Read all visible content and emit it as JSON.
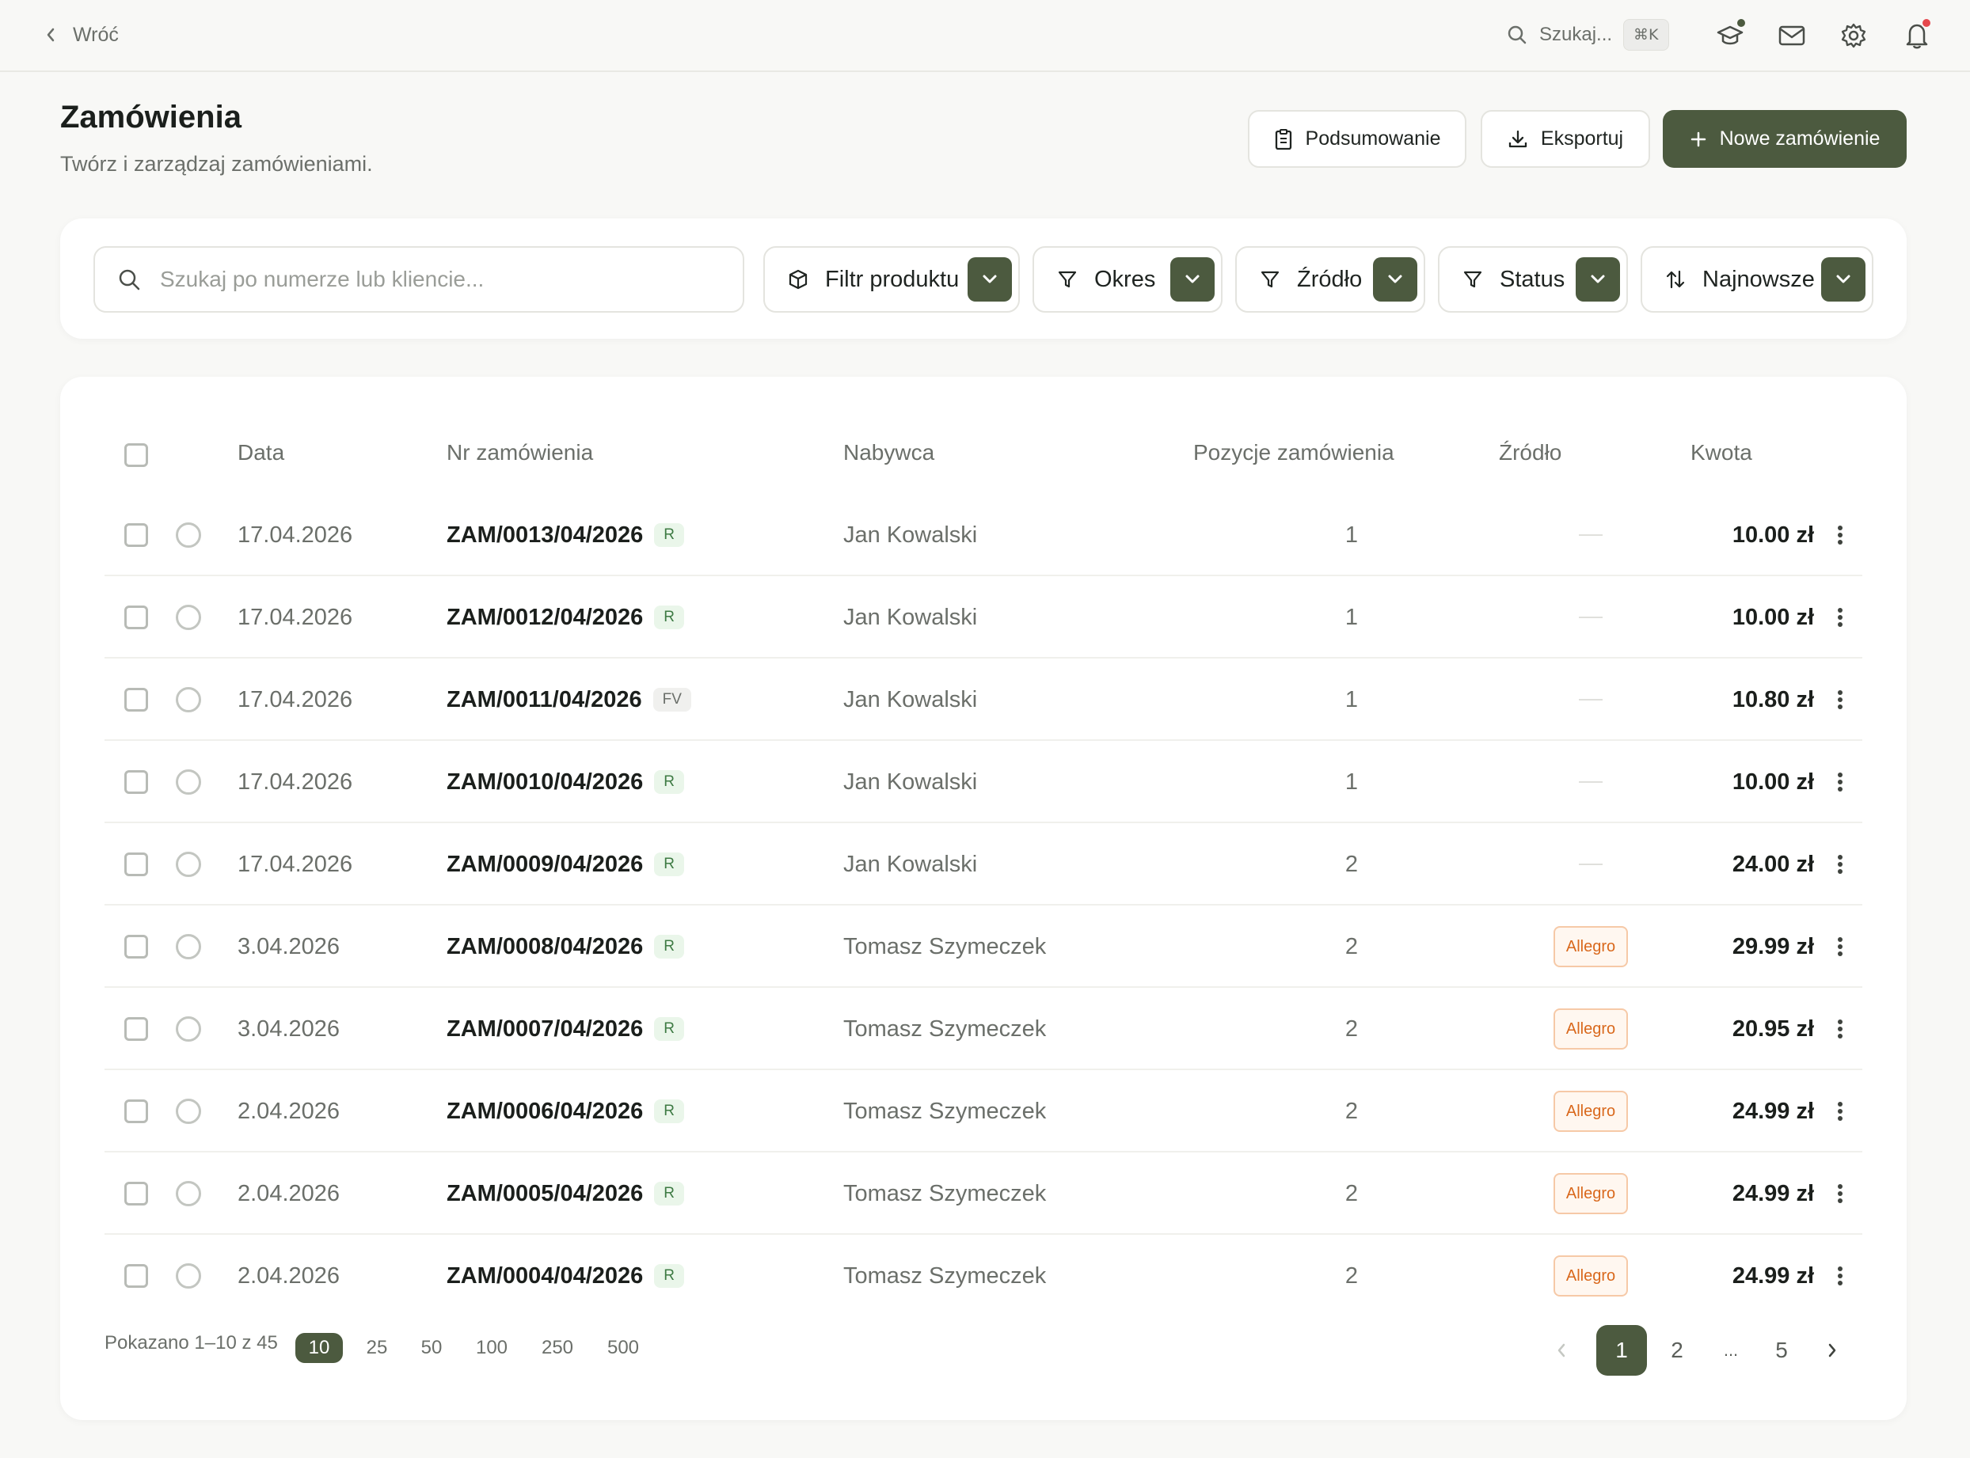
{
  "topbar": {
    "back_label": "Wróć",
    "search_label": "Szukaj...",
    "search_shortcut": "⌘K",
    "icons": [
      "graduation-cap-icon",
      "mail-icon",
      "gear-icon",
      "bell-icon"
    ],
    "badge_colors": {
      "graduation": "#4c5a3f",
      "bell": "#e5484d"
    }
  },
  "header": {
    "title": "Zamówienia",
    "subtitle": "Twórz i zarządzaj zamówieniami.",
    "summary_label": "Podsumowanie",
    "export_label": "Eksportuj",
    "new_order_label": "Nowe zamówienie"
  },
  "filters": {
    "search_placeholder": "Szukaj po numerze lub kliencie...",
    "product": "Filtr produktu",
    "period": "Okres",
    "source": "Źródło",
    "status": "Status",
    "sort": "Najnowsze"
  },
  "table": {
    "columns": {
      "date": "Data",
      "order": "Nr zamówienia",
      "buyer": "Nabywca",
      "items": "Pozycje zamówienia",
      "source": "Źródło",
      "amount": "Kwota"
    },
    "rows": [
      {
        "date": "17.04.2026",
        "order": "ZAM/0013/04/2026",
        "tag": "R",
        "buyer": "Jan Kowalski",
        "items": "1",
        "source": "",
        "amount": "10.00 zł"
      },
      {
        "date": "17.04.2026",
        "order": "ZAM/0012/04/2026",
        "tag": "R",
        "buyer": "Jan Kowalski",
        "items": "1",
        "source": "",
        "amount": "10.00 zł"
      },
      {
        "date": "17.04.2026",
        "order": "ZAM/0011/04/2026",
        "tag": "FV",
        "buyer": "Jan Kowalski",
        "items": "1",
        "source": "",
        "amount": "10.80 zł"
      },
      {
        "date": "17.04.2026",
        "order": "ZAM/0010/04/2026",
        "tag": "R",
        "buyer": "Jan Kowalski",
        "items": "1",
        "source": "",
        "amount": "10.00 zł"
      },
      {
        "date": "17.04.2026",
        "order": "ZAM/0009/04/2026",
        "tag": "R",
        "buyer": "Jan Kowalski",
        "items": "2",
        "source": "",
        "amount": "24.00 zł"
      },
      {
        "date": "3.04.2026",
        "order": "ZAM/0008/04/2026",
        "tag": "R",
        "buyer": "Tomasz Szymeczek",
        "items": "2",
        "source": "Allegro",
        "amount": "29.99 zł"
      },
      {
        "date": "3.04.2026",
        "order": "ZAM/0007/04/2026",
        "tag": "R",
        "buyer": "Tomasz Szymeczek",
        "items": "2",
        "source": "Allegro",
        "amount": "20.95 zł"
      },
      {
        "date": "2.04.2026",
        "order": "ZAM/0006/04/2026",
        "tag": "R",
        "buyer": "Tomasz Szymeczek",
        "items": "2",
        "source": "Allegro",
        "amount": "24.99 zł"
      },
      {
        "date": "2.04.2026",
        "order": "ZAM/0005/04/2026",
        "tag": "R",
        "buyer": "Tomasz Szymeczek",
        "items": "2",
        "source": "Allegro",
        "amount": "24.99 zł"
      },
      {
        "date": "2.04.2026",
        "order": "ZAM/0004/04/2026",
        "tag": "R",
        "buyer": "Tomasz Szymeczek",
        "items": "2",
        "source": "Allegro",
        "amount": "24.99 zł"
      }
    ]
  },
  "footer": {
    "showing": "Pokazano 1–10 z 45",
    "page_sizes": [
      "10",
      "25",
      "50",
      "100",
      "250",
      "500"
    ],
    "selected_page_size": "10",
    "pages": [
      "1",
      "2",
      "...",
      "5"
    ],
    "current_page": "1"
  }
}
